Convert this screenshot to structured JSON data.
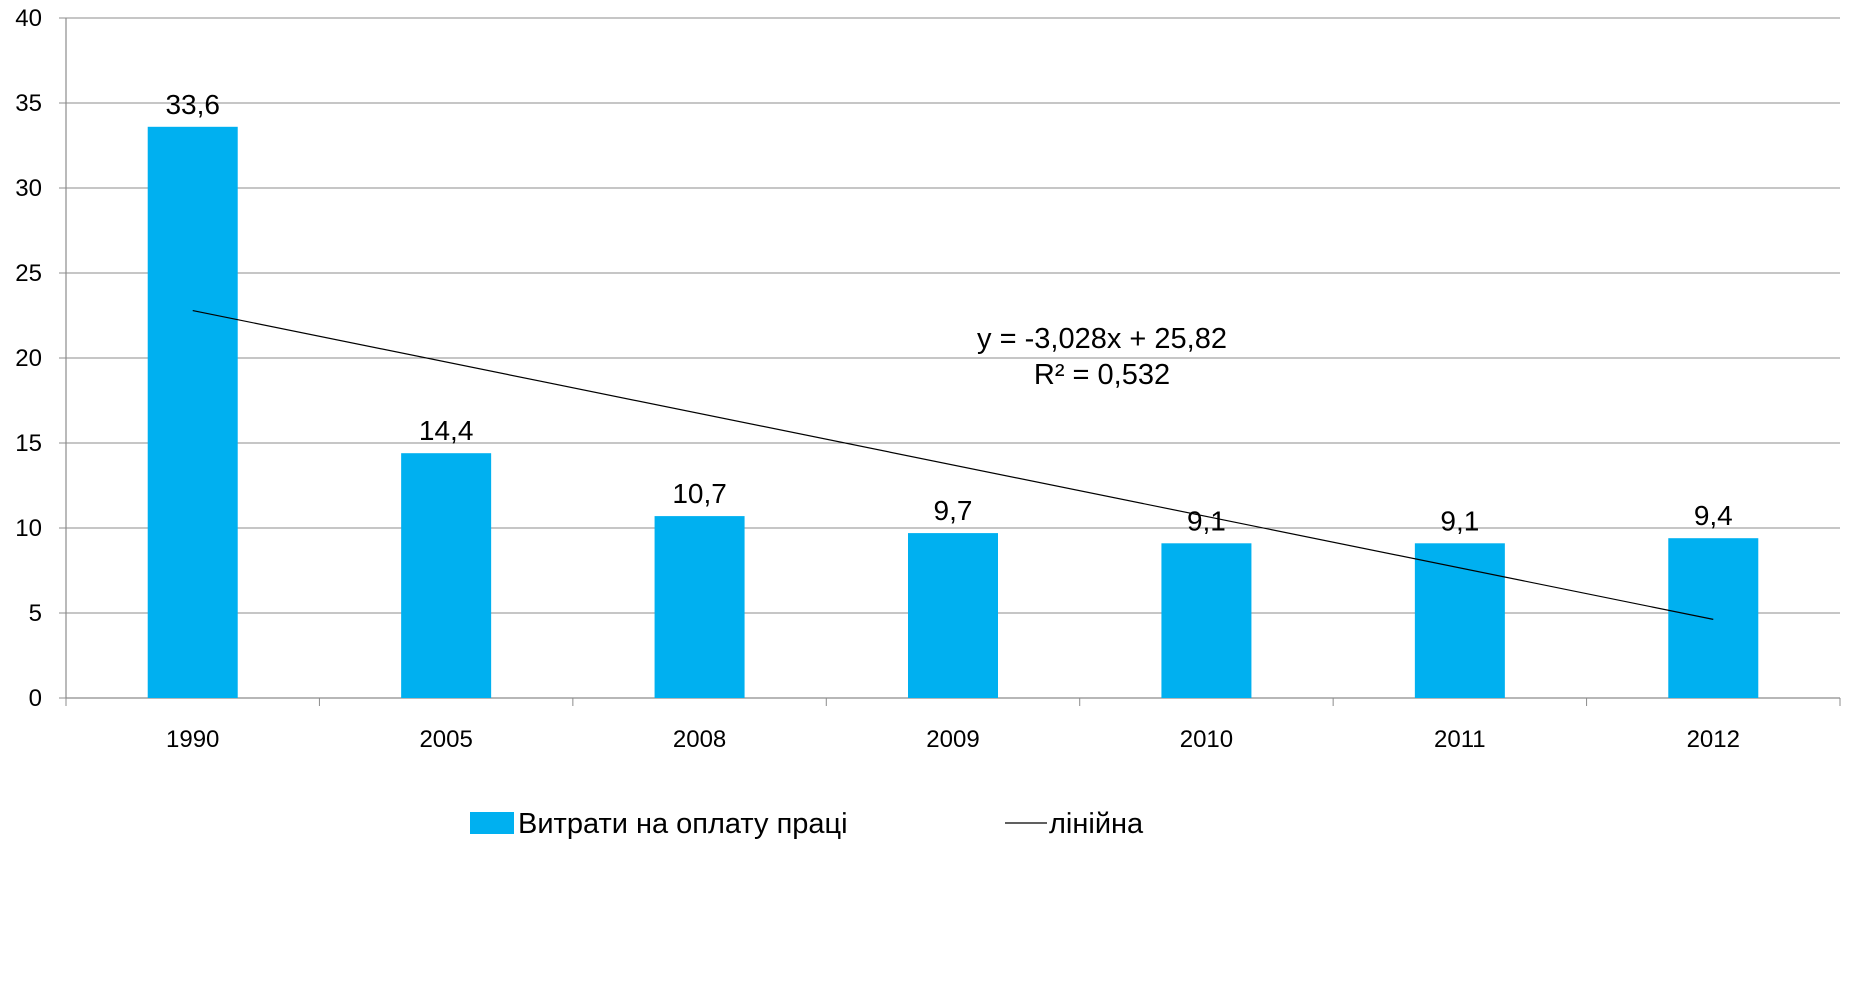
{
  "chart_data": {
    "type": "bar",
    "categories": [
      "1990",
      "2005",
      "2008",
      "2009",
      "2010",
      "2011",
      "2012"
    ],
    "series": [
      {
        "name": "Витрати на оплату праці",
        "values": [
          33.6,
          14.4,
          10.7,
          9.7,
          9.1,
          9.1,
          9.4
        ],
        "labels": [
          "33,6",
          "14,4",
          "10,7",
          "9,7",
          "9,1",
          "9,1",
          "9,4"
        ],
        "color": "#00B0F0"
      }
    ],
    "trendline": {
      "name": "лінійна",
      "type": "linear",
      "slope": -3.028,
      "intercept": 25.82,
      "equation": "y = -3,028x + 25,82",
      "r_squared": "R² = 0,532",
      "color": "#000000"
    },
    "ylim": [
      0,
      40
    ],
    "yticks": [
      0,
      5,
      10,
      15,
      20,
      25,
      30,
      35,
      40
    ],
    "gridlines": true,
    "legend_position": "bottom",
    "title": "",
    "xlabel": "",
    "ylabel": ""
  }
}
